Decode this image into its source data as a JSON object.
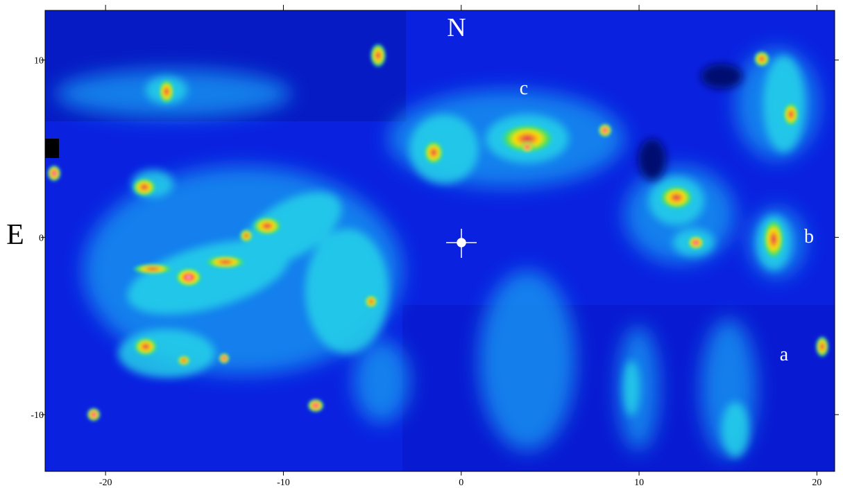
{
  "chart_data": {
    "type": "image",
    "xlim": [
      -23.4,
      21
    ],
    "ylim": [
      -13.2,
      12.8
    ],
    "xticks": [
      -20,
      -10,
      0,
      10,
      20
    ],
    "yticks": [
      -10,
      0,
      10
    ],
    "annotations": {
      "north": "N",
      "east": "E",
      "a": "a",
      "b": "b",
      "c": "c"
    }
  }
}
